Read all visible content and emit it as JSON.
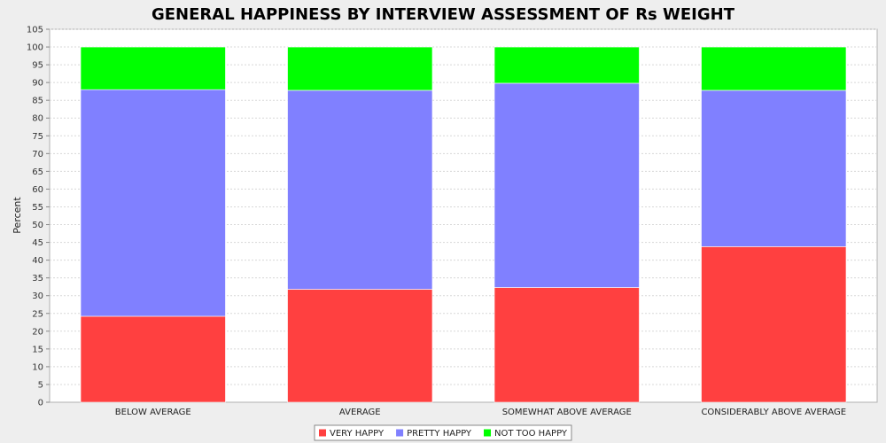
{
  "chart_data": {
    "type": "bar",
    "stacked": true,
    "title": "GENERAL HAPPINESS BY INTERVIEW ASSESSMENT OF Rs WEIGHT",
    "xlabel": "",
    "ylabel": "Percent",
    "ylim": [
      0,
      105
    ],
    "yticks": [
      0,
      5,
      10,
      15,
      20,
      25,
      30,
      35,
      40,
      45,
      50,
      55,
      60,
      65,
      70,
      75,
      80,
      85,
      90,
      95,
      100,
      105
    ],
    "grid": true,
    "legend_position": "bottom",
    "categories": [
      "BELOW AVERAGE",
      "AVERAGE",
      "SOMEWHAT ABOVE AVERAGE",
      "CONSIDERABLY ABOVE AVERAGE"
    ],
    "series": [
      {
        "name": "VERY HAPPY",
        "color": "#ff4040",
        "values": [
          24.2,
          31.8,
          32.3,
          43.8
        ]
      },
      {
        "name": "PRETTY HAPPY",
        "color": "#8080ff",
        "values": [
          63.8,
          56.0,
          57.5,
          44.0
        ]
      },
      {
        "name": "NOT TOO HAPPY",
        "color": "#00ff00",
        "values": [
          12.0,
          12.2,
          10.2,
          12.2
        ]
      }
    ]
  }
}
